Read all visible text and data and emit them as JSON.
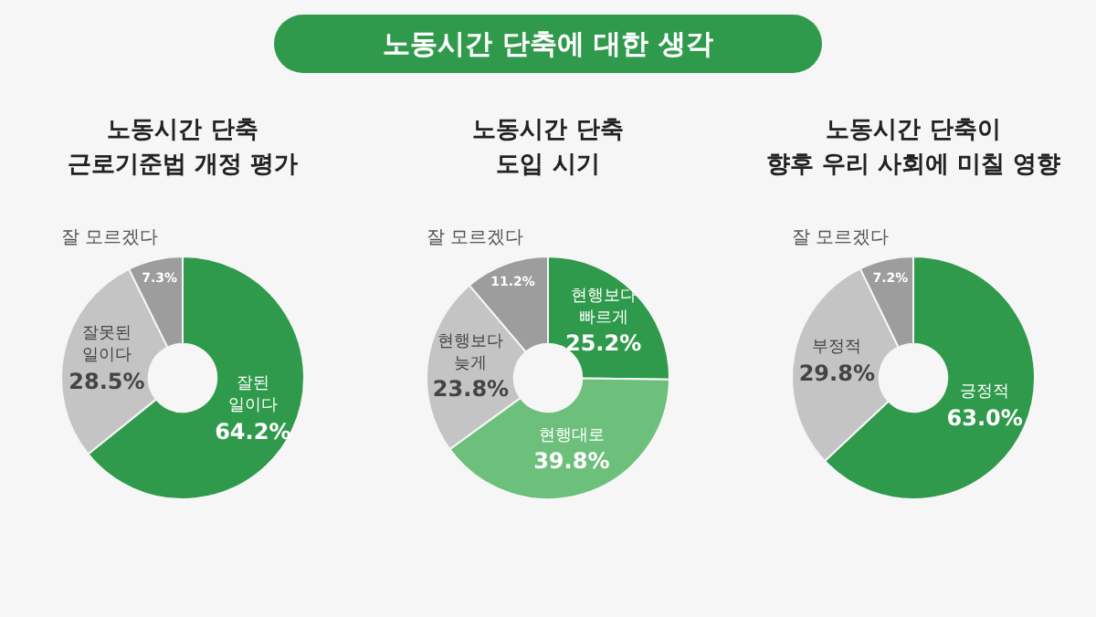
{
  "chart_data": [
    {
      "type": "other",
      "title": "노동시간 단축에 대한 생각"
    },
    {
      "type": "donut",
      "title": "노동시간 단축\n근로기준법 개정 평가",
      "categories": [
        "잘된 일이다",
        "잘못된 일이다",
        "잘 모르겠다"
      ],
      "values": [
        64.2,
        28.5,
        7.3
      ],
      "value_labels": [
        "64.2%",
        "28.5%",
        "7.3%"
      ],
      "colors": [
        "#2f9a4b",
        "#c4c4c4",
        "#9d9d9d"
      ],
      "legend": false
    },
    {
      "type": "donut",
      "title": "노동시간 단축\n도입 시기",
      "categories": [
        "현행보다 빠르게",
        "현행대로",
        "현행보다 늦게",
        "잘 모르겠다"
      ],
      "values": [
        25.2,
        39.8,
        23.8,
        11.2
      ],
      "value_labels": [
        "25.2%",
        "39.8%",
        "23.8%",
        "11.2%"
      ],
      "colors": [
        "#2f9a4b",
        "#6cc07c",
        "#c4c4c4",
        "#9d9d9d"
      ],
      "legend": false
    },
    {
      "type": "donut",
      "title": "노동시간 단축이\n향후 우리 사회에 미칠 영향",
      "categories": [
        "긍정적",
        "부정적",
        "잘 모르겠다"
      ],
      "values": [
        63.0,
        29.8,
        7.2
      ],
      "value_labels": [
        "63.0%",
        "29.8%",
        "7.2%"
      ],
      "colors": [
        "#2f9a4b",
        "#c4c4c4",
        "#9d9d9d"
      ],
      "legend": false
    }
  ]
}
